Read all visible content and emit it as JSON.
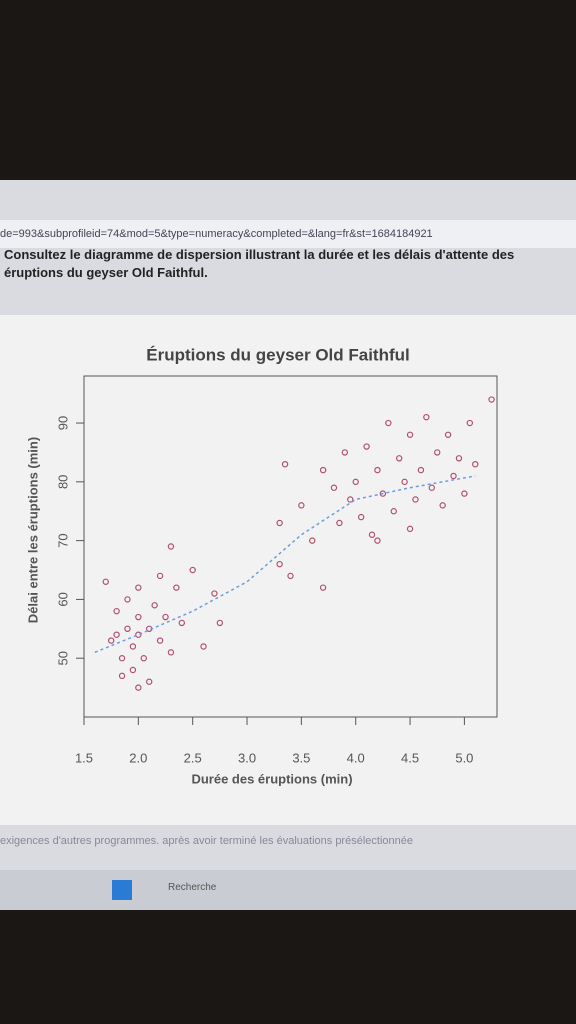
{
  "url": "de=993&subprofileid=74&mod=5&type=numeracy&completed=&lang=fr&st=1684184921",
  "question": "Consultez le diagramme de dispersion illustrant la durée et les délais d'attente des éruptions du geyser Old Faithful.",
  "footer_text": "exigences d'autres programmes. après avoir terminé les évaluations présélectionnée",
  "taskbar_search": "Recherche",
  "chart_data": {
    "type": "scatter",
    "title": "Éruptions du geyser Old Faithful",
    "x_label": "Durée des éruptions (min)",
    "y_label": "Délai entre les éruptions (min)",
    "color": "#b0506e",
    "trend_color": "#6f9be0",
    "xlim": [
      1.5,
      5.3
    ],
    "ylim": [
      40,
      98
    ],
    "xticks": [
      1.5,
      {
        "value": 2,
        "label": "2.0"
      },
      2.5,
      {
        "value": 3,
        "label": "3.0"
      },
      3.5,
      {
        "value": 4,
        "label": "4.0"
      },
      4.5,
      {
        "value": 5,
        "label": "5.0"
      }
    ],
    "yticks": [
      50,
      60,
      70,
      80,
      90
    ],
    "x": [
      1.75,
      1.8,
      1.8,
      1.85,
      1.85,
      1.9,
      1.9,
      1.95,
      1.95,
      2.0,
      2.0,
      2.0,
      2.05,
      2.1,
      2.1,
      2.15,
      2.2,
      2.2,
      2.25,
      2.3,
      2.35,
      2.4,
      2.5,
      1.7,
      2.0,
      2.3,
      2.6,
      2.75,
      2.7,
      3.3,
      3.3,
      3.35,
      3.4,
      3.5,
      3.6,
      3.7,
      3.7,
      3.8,
      3.85,
      3.9,
      3.95,
      4.0,
      4.05,
      4.1,
      4.15,
      4.2,
      4.25,
      4.3,
      4.35,
      4.4,
      4.45,
      4.5,
      4.55,
      4.6,
      4.65,
      4.7,
      4.75,
      4.8,
      4.85,
      4.9,
      4.95,
      5.0,
      5.05,
      5.1,
      5.25,
      4.5,
      4.2
    ],
    "y": [
      53,
      54,
      58,
      50,
      47,
      55,
      60,
      52,
      48,
      54,
      57,
      62,
      50,
      55,
      46,
      59,
      53,
      64,
      57,
      51,
      62,
      56,
      65,
      63,
      45,
      69,
      52,
      56,
      61,
      73,
      66,
      83,
      64,
      76,
      70,
      82,
      62,
      79,
      73,
      85,
      77,
      80,
      74,
      86,
      71,
      82,
      78,
      90,
      75,
      84,
      80,
      88,
      77,
      82,
      91,
      79,
      85,
      76,
      88,
      81,
      84,
      78,
      90,
      83,
      94,
      72,
      70
    ],
    "trend": {
      "x": [
        1.6,
        2.0,
        2.5,
        3.0,
        3.5,
        4.0,
        4.5,
        5.1
      ],
      "y": [
        51,
        54,
        58,
        63,
        71,
        77,
        79,
        81
      ]
    }
  }
}
